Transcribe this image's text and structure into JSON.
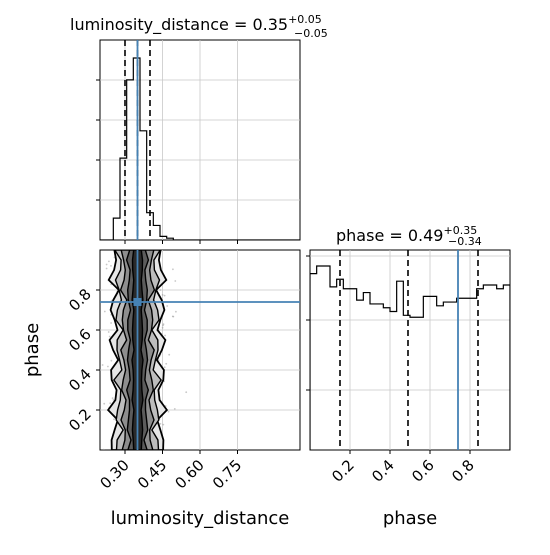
{
  "chart_data": {
    "type": "corner",
    "parameters": [
      "luminosity_distance",
      "phase"
    ],
    "titles": {
      "luminosity_distance": {
        "label": "luminosity_distance = 0.35",
        "plus": "+0.05",
        "minus": "−0.05"
      },
      "phase": {
        "label": "phase = 0.49",
        "plus": "+0.35",
        "minus": "−0.34"
      }
    },
    "xlabels": {
      "luminosity_distance": "luminosity_distance",
      "phase": "phase"
    },
    "ylabel": "phase",
    "luminosity_distance": {
      "xlim": [
        0.2,
        1.0
      ],
      "ticks": [
        0.3,
        0.45,
        0.6,
        0.75
      ],
      "tick_labels": [
        "0.30",
        "0.45",
        "0.60",
        "0.75"
      ],
      "quantiles": [
        0.3,
        0.35,
        0.4
      ],
      "truth": 0.35,
      "hist_bin_edges": [
        0.2,
        0.2267,
        0.2533,
        0.28,
        0.3067,
        0.3333,
        0.36,
        0.3867,
        0.4133,
        0.44,
        0.4667,
        0.4933,
        0.52,
        0.5467,
        0.5733,
        0.6,
        0.6267,
        0.6533,
        0.68,
        0.7067,
        0.7333,
        0.76,
        0.7867,
        0.8133,
        0.84,
        0.8667,
        0.8933,
        0.92,
        0.9467,
        0.9733,
        1.0
      ],
      "hist_counts": [
        0,
        0,
        0.12,
        0.45,
        0.88,
        1.0,
        0.6,
        0.15,
        0.08,
        0.02,
        0.01,
        0,
        0,
        0,
        0,
        0,
        0,
        0,
        0,
        0,
        0,
        0,
        0,
        0,
        0,
        0,
        0,
        0,
        0,
        0
      ]
    },
    "phase": {
      "xlim": [
        0.0,
        1.0
      ],
      "ticks": [
        0.2,
        0.4,
        0.6,
        0.8
      ],
      "tick_labels": [
        "0.2",
        "0.4",
        "0.6",
        "0.8"
      ],
      "quantiles": [
        0.15,
        0.49,
        0.84
      ],
      "truth": 0.74,
      "hist_bin_edges": [
        0.0,
        0.0333,
        0.0667,
        0.1,
        0.1333,
        0.1667,
        0.2,
        0.2333,
        0.2667,
        0.3,
        0.3333,
        0.3667,
        0.4,
        0.4333,
        0.4667,
        0.5,
        0.5333,
        0.5667,
        0.6,
        0.6333,
        0.6667,
        0.7,
        0.7333,
        0.7667,
        0.8,
        0.8333,
        0.8667,
        0.9,
        0.9333,
        0.9667,
        1.0
      ],
      "hist_counts": [
        0.93,
        0.97,
        0.97,
        0.86,
        0.9,
        0.85,
        0.85,
        0.79,
        0.83,
        0.77,
        0.77,
        0.75,
        0.73,
        0.89,
        0.71,
        0.7,
        0.7,
        0.81,
        0.81,
        0.76,
        0.78,
        0.78,
        0.8,
        0.8,
        0.8,
        0.85,
        0.87,
        0.87,
        0.85,
        0.87
      ]
    },
    "joint": {
      "x_truth": 0.35,
      "y_truth": 0.74,
      "yticks": [
        0.2,
        0.4,
        0.6,
        0.8
      ],
      "ytick_labels": [
        "0.2",
        "0.4",
        "0.6",
        "0.8"
      ]
    },
    "colors": {
      "truth": "#4682b4",
      "hist": "#000000",
      "grid": "#c8c8c8",
      "points": "#9a9a9a"
    }
  }
}
